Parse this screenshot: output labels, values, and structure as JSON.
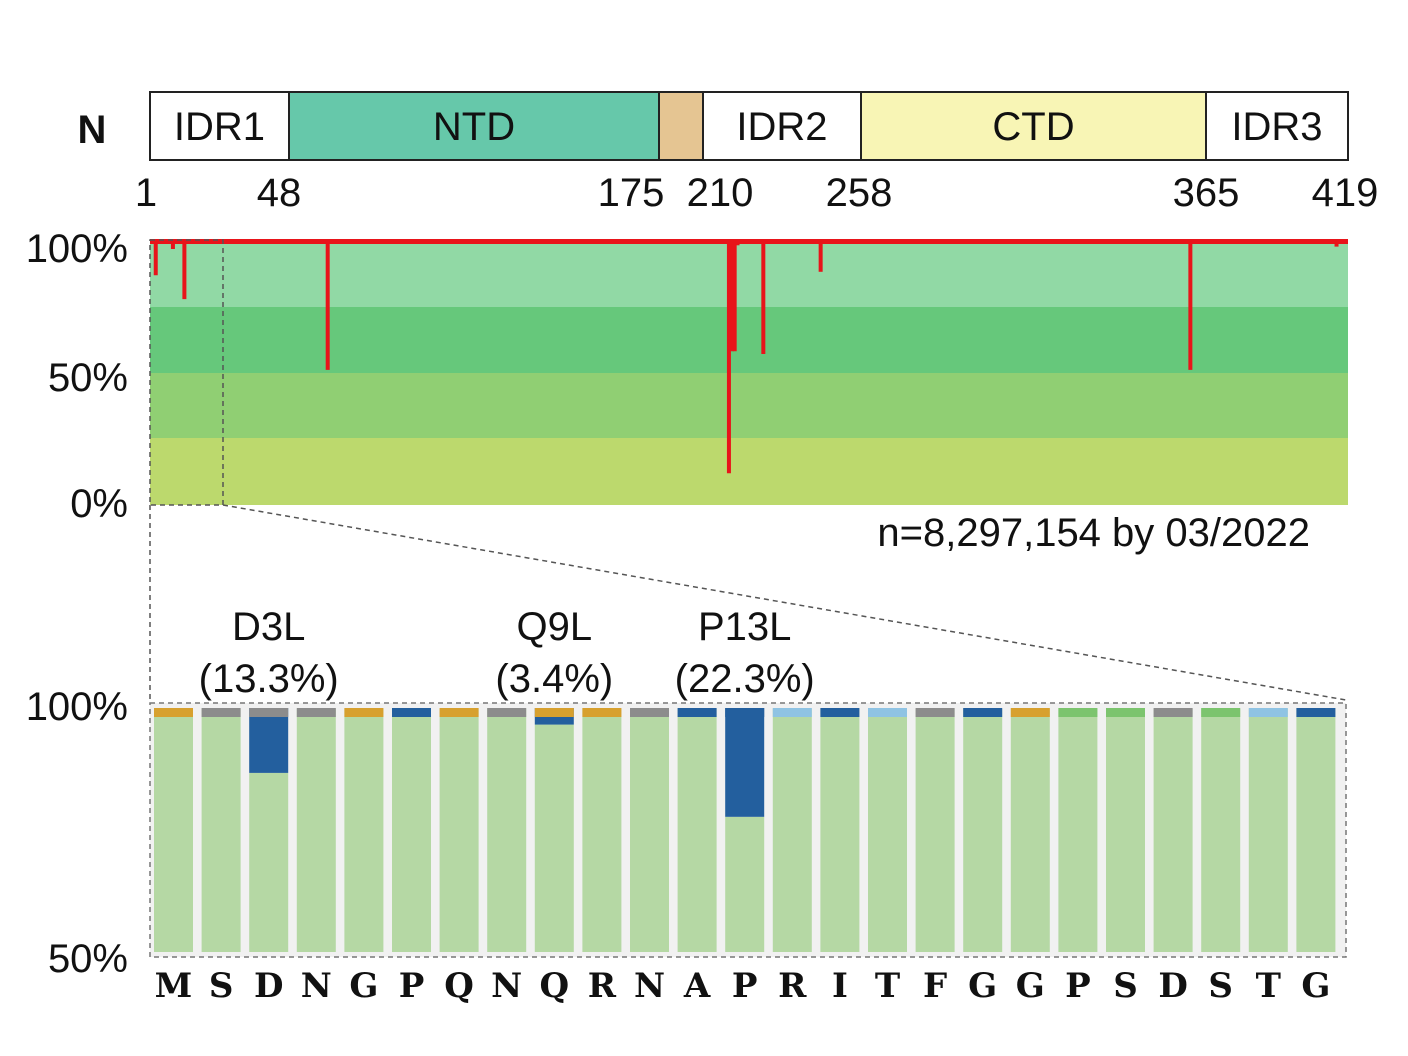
{
  "domain_map": {
    "terminal_label": "N",
    "segments": [
      {
        "label": "IDR1",
        "start": 1,
        "end": 48,
        "color": "#ffffff"
      },
      {
        "label": "NTD",
        "start": 48,
        "end": 175,
        "color": "#66c8aa"
      },
      {
        "label": "",
        "start": 175,
        "end": 190,
        "color": "#e5c592"
      },
      {
        "label": "IDR2",
        "start": 190,
        "end": 258,
        "color": "#ffffff"
      },
      {
        "label": "CTD",
        "start": 258,
        "end": 365,
        "color": "#f8f5b5"
      },
      {
        "label": "IDR3",
        "start": 365,
        "end": 419,
        "color": "#ffffff"
      }
    ],
    "position_ticks": [
      "1",
      "48",
      "175",
      "210",
      "258",
      "365",
      "419"
    ]
  },
  "chart_data": [
    {
      "type": "bar",
      "description_panel": "conservation-profile",
      "x_range": [
        1,
        419
      ],
      "ylim": [
        0,
        100
      ],
      "y_tick_labels": [
        "100%",
        "50%",
        "0%"
      ],
      "background_bands": [
        "#91d9a5",
        "#66c87b",
        "#90cf73",
        "#bcd96d"
      ],
      "series_color": "#e8141a",
      "annotation": "n=8,297,154 by 03/2022",
      "dips": [
        {
          "position": 3,
          "value": 86.7
        },
        {
          "position": 9,
          "value": 96.6
        },
        {
          "position": 13,
          "value": 77.7
        },
        {
          "position": 19,
          "value": 98.5
        },
        {
          "position": 63,
          "value": 51
        },
        {
          "position": 80,
          "value": 99
        },
        {
          "position": 137,
          "value": 99
        },
        {
          "position": 153,
          "value": 99
        },
        {
          "position": 195,
          "value": 99
        },
        {
          "position": 199,
          "value": 98.5
        },
        {
          "position": 203,
          "value": 12
        },
        {
          "position": 204,
          "value": 58
        },
        {
          "position": 205,
          "value": 58
        },
        {
          "position": 206,
          "value": 98
        },
        {
          "position": 215,
          "value": 57
        },
        {
          "position": 220,
          "value": 99
        },
        {
          "position": 235,
          "value": 88
        },
        {
          "position": 326,
          "value": 99
        },
        {
          "position": 342,
          "value": 99
        },
        {
          "position": 364,
          "value": 51
        },
        {
          "position": 374,
          "value": 99
        },
        {
          "position": 379,
          "value": 99
        },
        {
          "position": 415,
          "value": 97.5
        }
      ]
    },
    {
      "type": "bar",
      "description_panel": "zoom-first-25-residues",
      "ylim": [
        50,
        100
      ],
      "y_tick_labels": [
        "100%",
        "50%"
      ],
      "categories": [
        "M",
        "S",
        "D",
        "N",
        "G",
        "P",
        "Q",
        "N",
        "Q",
        "R",
        "N",
        "A",
        "P",
        "R",
        "I",
        "T",
        "F",
        "G",
        "G",
        "P",
        "S",
        "D",
        "S",
        "T",
        "G"
      ],
      "highlight_category_index": 16,
      "highlight_color": "#e8141a",
      "bar_color": "#b5d8a4",
      "series": [
        {
          "values": [
            99.9,
            99.9,
            86.7,
            99.9,
            99.9,
            99.9,
            99.9,
            99.9,
            96.6,
            99.9,
            99.9,
            99.9,
            77.7,
            99.9,
            99.9,
            99.9,
            99.9,
            99.9,
            99.9,
            99.9,
            99.9,
            99.9,
            99.9,
            99.9,
            99.9
          ]
        }
      ],
      "cap_colors": [
        "#d7a02e",
        "#8c8c8c",
        "#8c8c8c",
        "#8c8c8c",
        "#d7a02e",
        "#235f9e",
        "#d7a02e",
        "#8c8c8c",
        "#d7a02e",
        "#d7a02e",
        "#8c8c8c",
        "#235f9e",
        "#235f9e",
        "#8fc3e3",
        "#235f9e",
        "#8fc3e3",
        "#8c8c8c",
        "#235f9e",
        "#d7a02e",
        "#7cc46e",
        "#7cc46e",
        "#8c8c8c",
        "#7cc46e",
        "#8fc3e3",
        "#235f9e"
      ],
      "mutation_color": "#235f9e",
      "mutations": [
        {
          "name": "D3L",
          "percent": "(13.3%)",
          "index": 2
        },
        {
          "name": "Q9L",
          "percent": "(3.4%)",
          "index": 8
        },
        {
          "name": "P13L",
          "percent": "(22.3%)",
          "index": 12
        }
      ]
    }
  ]
}
